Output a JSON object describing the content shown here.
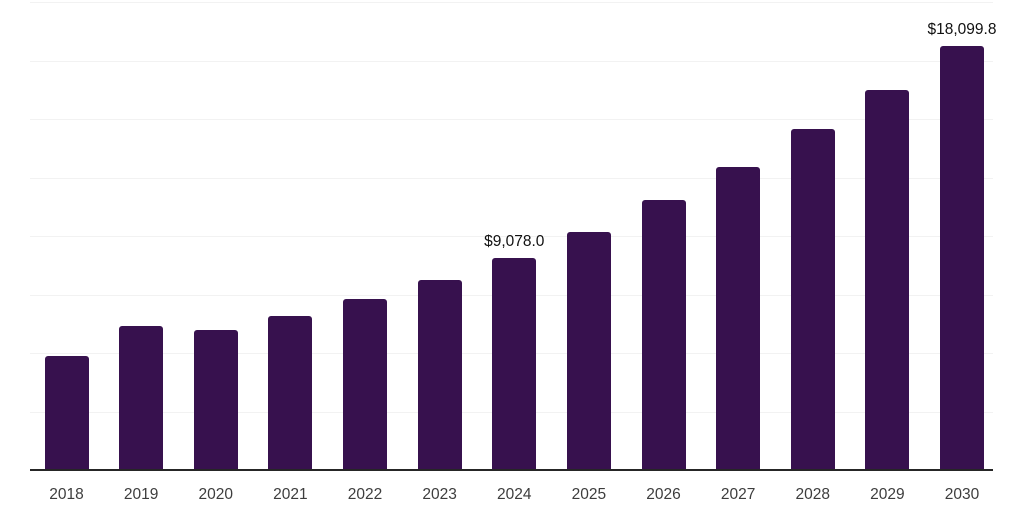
{
  "chart": {
    "background": "#ffffff",
    "colors": {
      "bar": "#37114E",
      "axis_line": "#262626",
      "gridline": "#f2f2f2",
      "data_label": "#111111",
      "tick_label": "#3d3d3d"
    }
  },
  "chart_data": {
    "type": "bar",
    "title": "",
    "xlabel": "",
    "ylabel": "",
    "categories": [
      "2018",
      "2019",
      "2020",
      "2021",
      "2022",
      "2023",
      "2024",
      "2025",
      "2026",
      "2027",
      "2028",
      "2029",
      "2030"
    ],
    "values": [
      4860,
      6140,
      5970,
      6565,
      7290,
      8120,
      9078.0,
      10190,
      11530,
      12960,
      14560,
      16260,
      18099.8
    ],
    "data_labels": [
      {
        "category": "2024",
        "text": "$9,078.0"
      },
      {
        "category": "2030",
        "text": "$18,099.8"
      }
    ],
    "ylim": [
      0,
      20000
    ],
    "gridline_step": 2500,
    "grid": "horizontal-light",
    "legend": "none",
    "bar_color": "#37114E"
  }
}
